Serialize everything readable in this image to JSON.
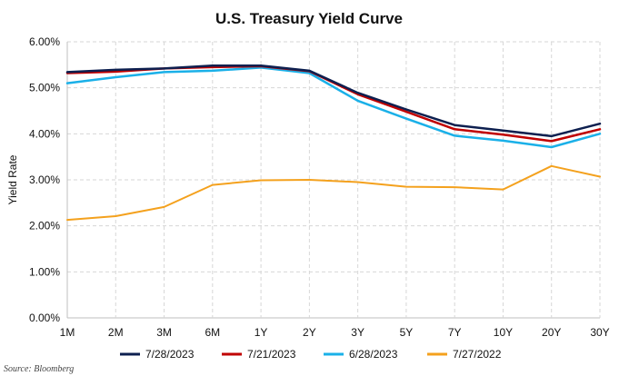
{
  "chart_data": {
    "type": "line",
    "title": "U.S. Treasury Yield Curve",
    "xlabel": "",
    "ylabel": "Yield Rate",
    "categories": [
      "1M",
      "2M",
      "3M",
      "6M",
      "1Y",
      "2Y",
      "3Y",
      "5Y",
      "7Y",
      "10Y",
      "20Y",
      "30Y"
    ],
    "ylim": [
      0,
      6
    ],
    "yticks": [
      "0.00%",
      "1.00%",
      "2.00%",
      "3.00%",
      "4.00%",
      "5.00%",
      "6.00%"
    ],
    "grid": true,
    "legend_position": "bottom",
    "source": "Source: Bloomberg",
    "series": [
      {
        "name": "7/28/2023",
        "color": "#0d1f4f",
        "values": [
          5.34,
          5.39,
          5.42,
          5.48,
          5.48,
          5.37,
          4.89,
          4.53,
          4.19,
          4.07,
          3.95,
          4.22
        ]
      },
      {
        "name": "7/21/2023",
        "color": "#c00000",
        "values": [
          5.32,
          5.35,
          5.42,
          5.45,
          5.47,
          5.36,
          4.86,
          4.48,
          4.1,
          3.98,
          3.84,
          4.1
        ]
      },
      {
        "name": "6/28/2023",
        "color": "#1ab0e8",
        "values": [
          5.1,
          5.23,
          5.34,
          5.37,
          5.44,
          5.32,
          4.72,
          4.33,
          3.96,
          3.85,
          3.71,
          4.0
        ]
      },
      {
        "name": "7/27/2022",
        "color": "#f4a11d",
        "values": [
          2.13,
          2.21,
          2.41,
          2.89,
          2.99,
          3.0,
          2.95,
          2.85,
          2.84,
          2.79,
          3.3,
          3.07
        ]
      }
    ]
  }
}
